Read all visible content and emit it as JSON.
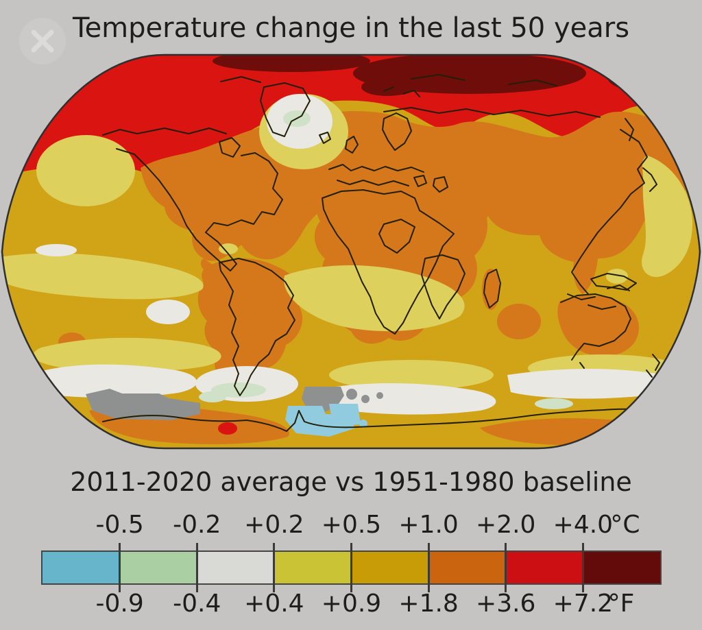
{
  "title": "Temperature change in the last 50 years",
  "subtitle": "2011-2020 average vs 1951-1980 baseline",
  "window": {
    "close_icon": "x-circle"
  },
  "scale": {
    "celsius": {
      "labels": [
        "-0.5",
        "-0.2",
        "+0.2",
        "+0.5",
        "+1.0",
        "+2.0",
        "+4.0"
      ],
      "unit": "°C"
    },
    "fahrenheit": {
      "labels": [
        "-0.9",
        "-0.4",
        "+0.4",
        "+0.9",
        "+1.8",
        "+3.6",
        "+7.2"
      ],
      "unit": "°F"
    },
    "segment_colors": [
      "#66b5cb",
      "#a9cfa2",
      "#d9d9d6",
      "#c9c335",
      "#c79c07",
      "#cb640e",
      "#cc0f12",
      "#630a0a"
    ]
  },
  "map": {
    "kind": "world-temperature-anomaly-map-robinson-projection",
    "palette": {
      "ocean": "#d1a317",
      "land": "#d5771b",
      "arctic_red": "#da1410",
      "dark_red": "#6e0d0a",
      "pale_yellow": "#ddd05c",
      "white_patch": "#e9e8e3",
      "pale_green": "#cfe2c8",
      "gray_nodata": "#8f9090",
      "light_blue": "#90cbdf",
      "coastline": "#221f06",
      "border": "#2f2f2f"
    }
  },
  "background_color": "#c5c4c2",
  "text_color": "#1d1d1d"
}
